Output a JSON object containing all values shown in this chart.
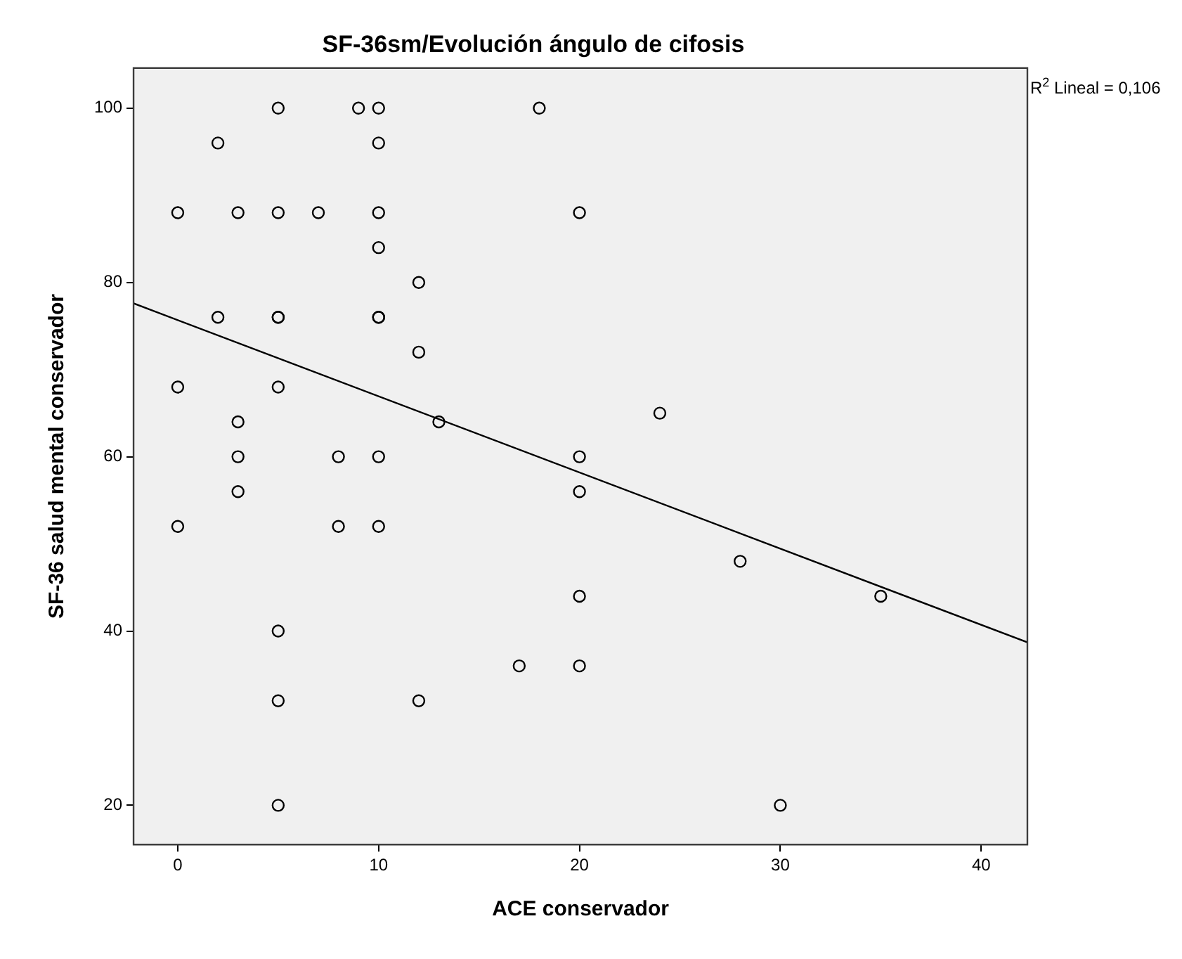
{
  "chart_data": {
    "type": "scatter",
    "title": "SF-36sm/Evolución ángulo de cifosis",
    "xlabel": "ACE conservador",
    "ylabel": "SF-36 salud mental conservador",
    "annotations": [
      "R$^{2}$ Lineal = 0,106"
    ],
    "xlim": [
      -2.2,
      42.3
    ],
    "xticks": [
      0,
      10,
      20,
      30,
      40
    ],
    "ylim": [
      15.5,
      104.6
    ],
    "yticks": [
      20,
      40,
      60,
      80,
      100
    ],
    "grid": false,
    "legend": false,
    "marker": "circle",
    "series": [
      {
        "color": "#000000",
        "x": [
          0,
          0,
          0,
          2,
          2,
          3,
          3,
          3,
          3,
          5,
          5,
          5,
          5,
          5,
          5,
          5,
          5,
          7,
          8,
          8,
          9,
          10,
          10,
          10,
          10,
          10,
          10,
          10,
          10,
          12,
          12,
          12,
          13,
          17,
          18,
          20,
          20,
          20,
          20,
          20,
          24,
          28,
          30,
          35
        ],
        "values": [
          88,
          68,
          52,
          96,
          76,
          88,
          64,
          60,
          56,
          100,
          88,
          76,
          76,
          68,
          40,
          32,
          20,
          88,
          60,
          52,
          100,
          100,
          96,
          88,
          84,
          76,
          76,
          60,
          52,
          80,
          72,
          32,
          64,
          36,
          100,
          88,
          60,
          56,
          44,
          36,
          65,
          48,
          20,
          44
        ]
      },
      {
        "type": "line",
        "color": "#000000",
        "marker": "none",
        "line_style": "solid",
        "x": [
          -2.2,
          42.3
        ],
        "values": [
          77.6,
          38.7
        ]
      }
    ]
  }
}
